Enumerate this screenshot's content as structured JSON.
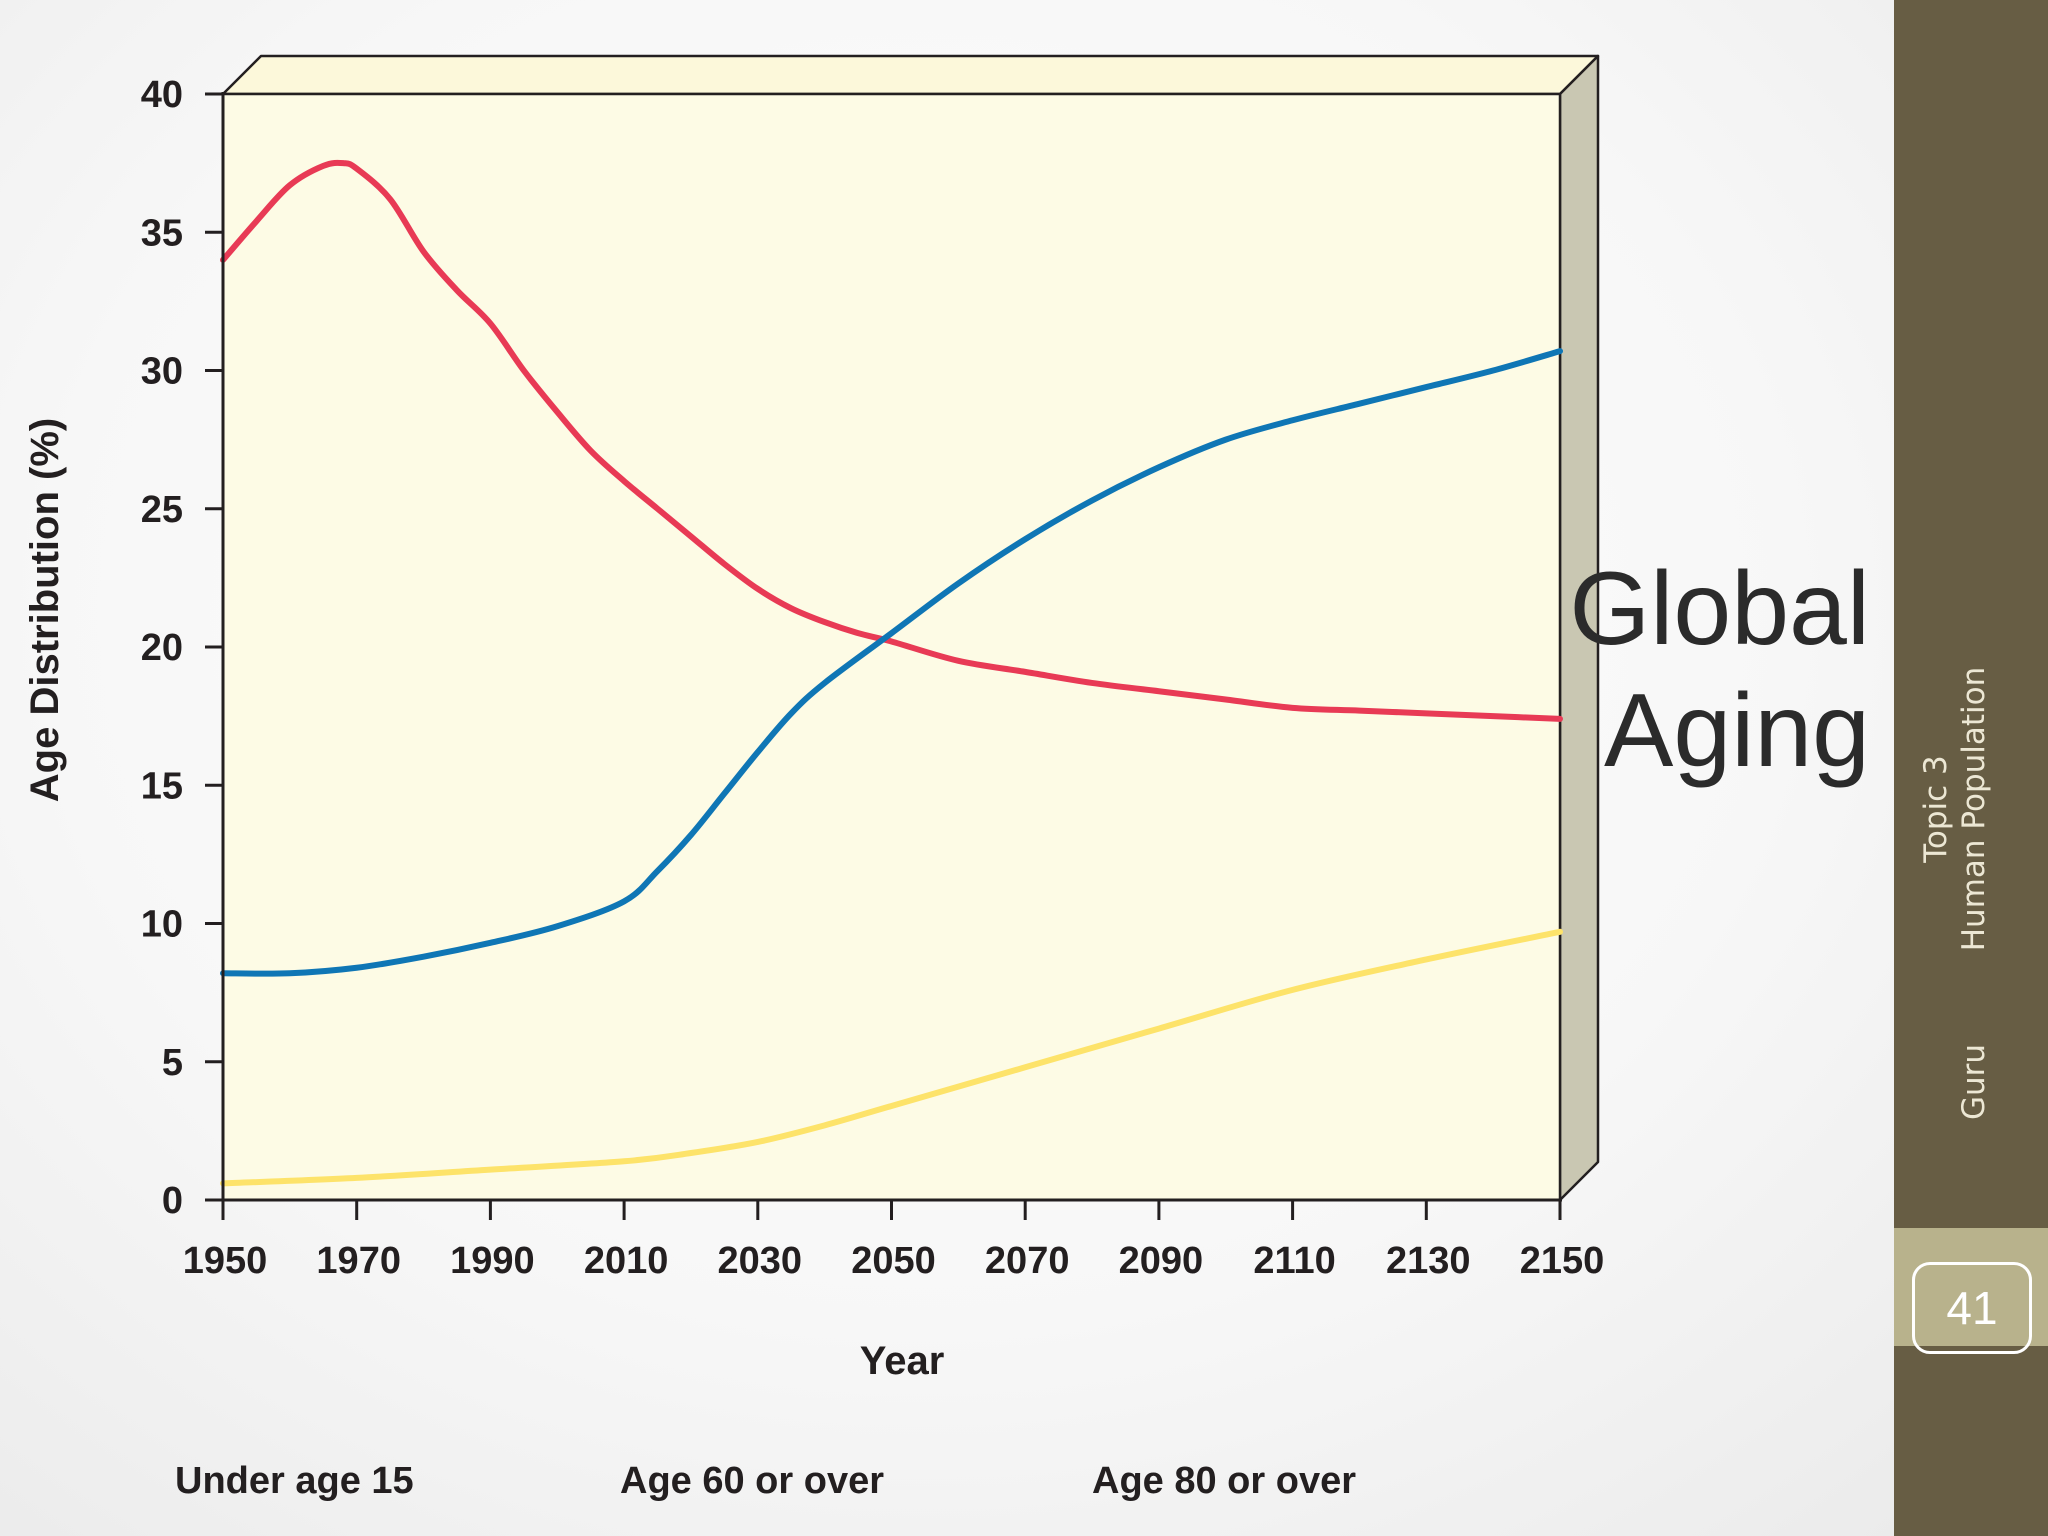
{
  "slide": {
    "title_lines": [
      "Global",
      "Aging"
    ],
    "footer_topic_lines": [
      "Topic 3",
      "Human Population"
    ],
    "footer_author": "Guru",
    "page_number": "41"
  },
  "legend": {
    "labels": [
      "Under age 15",
      "Age 60 or over",
      "Age 80 or over"
    ]
  },
  "colors": {
    "under_15": "#e83a55",
    "over_60": "#0f76b5",
    "over_80": "#fde36a",
    "plot_background": "#fdfbe5",
    "plot_side": "#c9c7b2",
    "panel": "#675d44",
    "page_tab": "#b8b28c"
  },
  "chart_data": {
    "type": "line",
    "title": "",
    "xlabel": "Year",
    "ylabel": "Age Distribution (%)",
    "xlim": [
      1950,
      2150
    ],
    "ylim": [
      0,
      40
    ],
    "x_ticks": [
      1950,
      1970,
      1990,
      2010,
      2030,
      2050,
      2070,
      2090,
      2110,
      2130,
      2150
    ],
    "y_ticks": [
      0,
      5,
      10,
      15,
      20,
      25,
      30,
      35,
      40
    ],
    "grid": false,
    "series": [
      {
        "name": "Under age 15",
        "x": [
          1950,
          1955,
          1960,
          1965,
          1968,
          1970,
          1975,
          1980,
          1985,
          1990,
          1995,
          2000,
          2005,
          2010,
          2015,
          2020,
          2025,
          2030,
          2035,
          2040,
          2045,
          2050,
          2060,
          2070,
          2080,
          2090,
          2100,
          2110,
          2120,
          2130,
          2140,
          2150
        ],
        "y": [
          34.0,
          35.4,
          36.7,
          37.4,
          37.5,
          37.3,
          36.2,
          34.3,
          32.9,
          31.7,
          30.0,
          28.5,
          27.1,
          26.0,
          25.0,
          24.0,
          23.0,
          22.1,
          21.4,
          20.9,
          20.5,
          20.2,
          19.5,
          19.1,
          18.7,
          18.4,
          18.1,
          17.8,
          17.7,
          17.6,
          17.5,
          17.4
        ]
      },
      {
        "name": "Age 60 or over",
        "x": [
          1950,
          1960,
          1970,
          1980,
          1990,
          2000,
          2010,
          2015,
          2020,
          2025,
          2030,
          2035,
          2040,
          2050,
          2060,
          2070,
          2080,
          2090,
          2100,
          2110,
          2120,
          2130,
          2140,
          2150
        ],
        "y": [
          8.2,
          8.2,
          8.4,
          8.8,
          9.3,
          9.9,
          10.8,
          11.9,
          13.2,
          14.7,
          16.2,
          17.6,
          18.7,
          20.5,
          22.3,
          23.9,
          25.3,
          26.5,
          27.5,
          28.2,
          28.8,
          29.4,
          30.0,
          30.7
        ]
      },
      {
        "name": "Age 80 or over",
        "x": [
          1950,
          1970,
          1990,
          2010,
          2020,
          2030,
          2040,
          2050,
          2070,
          2090,
          2110,
          2130,
          2150
        ],
        "y": [
          0.6,
          0.8,
          1.1,
          1.4,
          1.7,
          2.1,
          2.7,
          3.4,
          4.8,
          6.2,
          7.6,
          8.7,
          9.7
        ]
      }
    ]
  }
}
